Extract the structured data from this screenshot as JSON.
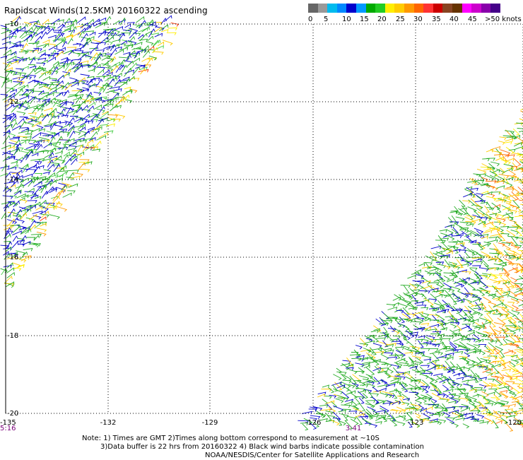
{
  "title": "Rapidscat Winds(12.5KM) 20160322 ascending",
  "legend": {
    "colors": [
      "#666666",
      "#999999",
      "#00bbee",
      "#0088ff",
      "#0000cc",
      "#0099ff",
      "#00aa00",
      "#22cc22",
      "#ffee00",
      "#ffcc00",
      "#ff9900",
      "#ff6600",
      "#ff3333",
      "#cc0000",
      "#884422",
      "#663300",
      "#ff00ff",
      "#cc00cc",
      "#8800aa",
      "#440088"
    ],
    "labels": [
      "0",
      "5",
      "10",
      "15",
      "20",
      "25",
      "30",
      "35",
      "40",
      "45",
      ">50 knots"
    ]
  },
  "axes": {
    "lat_labels": [
      "-10",
      "-12",
      "-14",
      "-16",
      "-18",
      "-20"
    ],
    "lon_labels": [
      "-135",
      "-132",
      "-129",
      "-126",
      "-123",
      "-120"
    ]
  },
  "times": {
    "left": "5:16",
    "right": "3:41"
  },
  "notes": {
    "line1": "Note: 1) Times are GMT 2)Times along bottom correspond to measurement at ~10S",
    "line2": "3)Data buffer is 22 hrs from 20160322 4) Black wind barbs indicate possible contamination",
    "credit": "NOAA/NESDIS/Center for Satellite Applications and Research"
  }
}
